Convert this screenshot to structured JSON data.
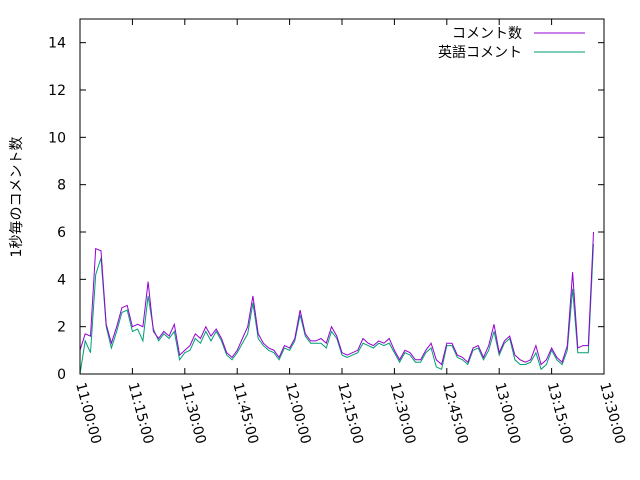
{
  "chart_data": {
    "type": "line",
    "ylabel": "1秒毎のコメント数",
    "xlabel": "",
    "title": "",
    "ylim": [
      0,
      15
    ],
    "x_ticks": [
      "11:00:00",
      "11:15:00",
      "11:30:00",
      "11:45:00",
      "12:00:00",
      "12:15:00",
      "12:30:00",
      "12:45:00",
      "13:00:00",
      "13:15:00",
      "13:30:00"
    ],
    "y_ticks": [
      0,
      2,
      4,
      6,
      8,
      10,
      12,
      14
    ],
    "x_start": "11:00:00",
    "x_step_minutes": 1.5,
    "legend_position": "top-right",
    "series": [
      {
        "name": "コメント数",
        "color": "#9400d3",
        "values": [
          1.0,
          1.7,
          1.6,
          5.3,
          5.2,
          2.1,
          1.3,
          2.0,
          2.8,
          2.9,
          2.0,
          2.1,
          2.0,
          3.9,
          1.8,
          1.5,
          1.8,
          1.6,
          2.1,
          0.8,
          1.0,
          1.2,
          1.7,
          1.5,
          2.0,
          1.6,
          1.9,
          1.5,
          0.9,
          0.7,
          1.0,
          1.5,
          2.0,
          3.3,
          1.7,
          1.3,
          1.1,
          1.0,
          0.7,
          1.2,
          1.1,
          1.5,
          2.7,
          1.7,
          1.4,
          1.4,
          1.5,
          1.3,
          2.0,
          1.6,
          0.9,
          0.8,
          0.9,
          1.0,
          1.5,
          1.3,
          1.2,
          1.4,
          1.3,
          1.5,
          1.0,
          0.6,
          1.0,
          0.9,
          0.6,
          0.6,
          1.0,
          1.3,
          0.6,
          0.4,
          1.3,
          1.3,
          0.8,
          0.7,
          0.5,
          1.1,
          1.2,
          0.7,
          1.2,
          2.1,
          0.9,
          1.4,
          1.6,
          0.8,
          0.6,
          0.5,
          0.6,
          1.2,
          0.4,
          0.6,
          1.1,
          0.7,
          0.5,
          1.2,
          4.3,
          1.1,
          1.2,
          1.2,
          6.0
        ]
      },
      {
        "name": "英語コメント",
        "color": "#009e73",
        "values": [
          0.0,
          1.4,
          0.9,
          4.2,
          4.9,
          2.0,
          1.1,
          1.8,
          2.6,
          2.7,
          1.8,
          1.9,
          1.4,
          3.3,
          1.9,
          1.4,
          1.7,
          1.5,
          1.8,
          0.6,
          0.9,
          1.0,
          1.5,
          1.3,
          1.8,
          1.4,
          1.8,
          1.4,
          0.8,
          0.6,
          0.9,
          1.3,
          1.7,
          3.0,
          1.5,
          1.2,
          1.0,
          0.9,
          0.6,
          1.1,
          1.0,
          1.4,
          2.5,
          1.6,
          1.3,
          1.3,
          1.3,
          1.1,
          1.8,
          1.5,
          0.8,
          0.7,
          0.8,
          0.9,
          1.3,
          1.2,
          1.1,
          1.3,
          1.2,
          1.3,
          0.9,
          0.5,
          0.9,
          0.8,
          0.5,
          0.5,
          0.9,
          1.1,
          0.3,
          0.2,
          1.2,
          1.2,
          0.7,
          0.6,
          0.4,
          1.0,
          1.1,
          0.6,
          1.0,
          1.8,
          0.8,
          1.3,
          1.5,
          0.6,
          0.4,
          0.4,
          0.5,
          0.9,
          0.2,
          0.4,
          1.0,
          0.6,
          0.4,
          1.0,
          3.6,
          0.9,
          0.9,
          0.9,
          5.5
        ]
      }
    ]
  }
}
